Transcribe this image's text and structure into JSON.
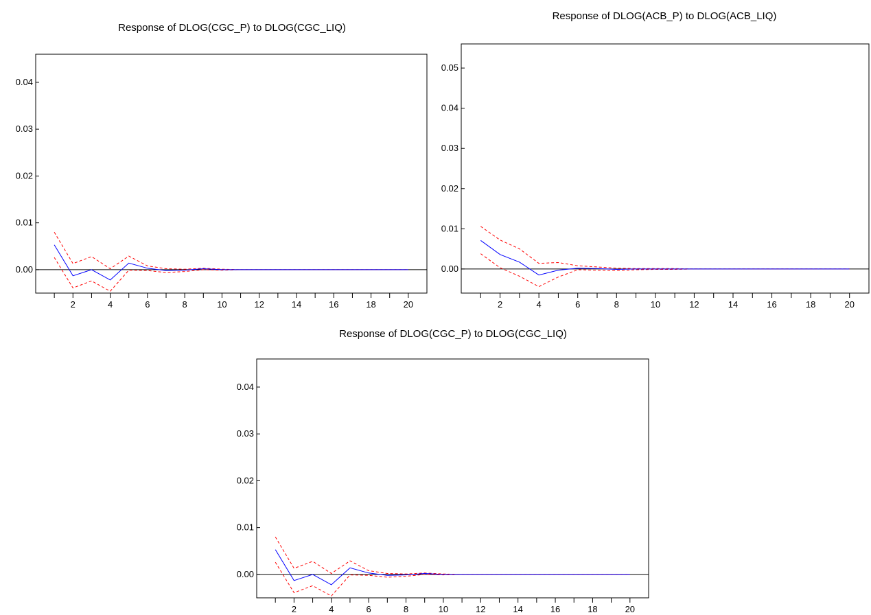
{
  "colors": {
    "response": "#0000ff",
    "bands": "#ff0000",
    "frame": "#000000",
    "zero_line": "#000000"
  },
  "chart_data": [
    {
      "type": "line",
      "title": "Response of DLOG(CGC_P) to DLOG(CGC_LIQ)",
      "xlabel": "",
      "ylabel": "",
      "xlim": [
        0,
        21
      ],
      "ylim": [
        -0.005,
        0.046
      ],
      "x_ticks": [
        2,
        4,
        6,
        8,
        10,
        12,
        14,
        16,
        18,
        20
      ],
      "x_tick_labels": [
        "2",
        "4",
        "6",
        "8",
        "10",
        "12",
        "14",
        "16",
        "18",
        "20"
      ],
      "y_ticks": [
        0,
        0.01,
        0.02,
        0.03,
        0.04
      ],
      "y_tick_labels": [
        "0.00",
        "0.01",
        "0.02",
        "0.03",
        "0.04"
      ],
      "grid": false,
      "x": [
        1,
        2,
        3,
        4,
        5,
        6,
        7,
        8,
        9,
        10,
        11,
        12,
        13,
        14,
        15,
        16,
        17,
        18,
        19,
        20
      ],
      "series": [
        {
          "style": "solid",
          "values": [
            0.0053,
            -0.0013,
            0.0,
            -0.0022,
            0.0014,
            0.0003,
            -0.0002,
            -0.0001,
            0.0002,
            0.0,
            0,
            0,
            0,
            0,
            0,
            0,
            0,
            0,
            0,
            0
          ]
        },
        {
          "style": "dashed",
          "values": [
            0.008,
            0.0013,
            0.0028,
            0.0002,
            0.0029,
            0.0008,
            0.0002,
            0.0001,
            0.0003,
            0.0001,
            0,
            0,
            0,
            0,
            0,
            0,
            0,
            0,
            0,
            0
          ]
        },
        {
          "style": "dashed",
          "values": [
            0.0026,
            -0.0039,
            -0.0024,
            -0.0046,
            -0.0001,
            -0.0002,
            -0.0006,
            -0.0004,
            0.0,
            -0.0001,
            0,
            0,
            0,
            0,
            0,
            0,
            0,
            0,
            0,
            0
          ]
        }
      ]
    },
    {
      "type": "line",
      "title": "Response of DLOG(ACB_P) to DLOG(ACB_LIQ)",
      "xlabel": "",
      "ylabel": "",
      "xlim": [
        0,
        21
      ],
      "ylim": [
        -0.006,
        0.056
      ],
      "x_ticks": [
        2,
        4,
        6,
        8,
        10,
        12,
        14,
        16,
        18,
        20
      ],
      "x_tick_labels": [
        "2",
        "4",
        "6",
        "8",
        "10",
        "12",
        "14",
        "16",
        "18",
        "20"
      ],
      "y_ticks": [
        0,
        0.01,
        0.02,
        0.03,
        0.04,
        0.05
      ],
      "y_tick_labels": [
        "0.00",
        "0.01",
        "0.02",
        "0.03",
        "0.04",
        "0.05"
      ],
      "grid": false,
      "x": [
        1,
        2,
        3,
        4,
        5,
        6,
        7,
        8,
        9,
        10,
        11,
        12,
        13,
        14,
        15,
        16,
        17,
        18,
        19,
        20
      ],
      "series": [
        {
          "style": "solid",
          "values": [
            0.0071,
            0.0036,
            0.0017,
            -0.0015,
            -0.0003,
            0.0002,
            0.0001,
            -0.0001,
            0,
            0,
            0,
            0,
            0,
            0,
            0,
            0,
            0,
            0,
            0,
            0
          ]
        },
        {
          "style": "dashed",
          "values": [
            0.0106,
            0.0072,
            0.005,
            0.0014,
            0.0016,
            0.0008,
            0.0005,
            0.0002,
            0.0001,
            0.0001,
            0.0001,
            0,
            0,
            0,
            0,
            0,
            0,
            0,
            0,
            0
          ]
        },
        {
          "style": "dashed",
          "values": [
            0.0038,
            0.0003,
            -0.0018,
            -0.0044,
            -0.002,
            -0.0002,
            -0.0003,
            -0.0004,
            -0.0002,
            -0.0001,
            -0.0001,
            0,
            0,
            0,
            0,
            0,
            0,
            0,
            0,
            0
          ]
        }
      ]
    },
    {
      "type": "line",
      "title": "Response of DLOG(CGC_P) to DLOG(CGC_LIQ)",
      "xlabel": "",
      "ylabel": "",
      "xlim": [
        0,
        21
      ],
      "ylim": [
        -0.005,
        0.046
      ],
      "x_ticks": [
        2,
        4,
        6,
        8,
        10,
        12,
        14,
        16,
        18,
        20
      ],
      "x_tick_labels": [
        "2",
        "4",
        "6",
        "8",
        "10",
        "12",
        "14",
        "16",
        "18",
        "20"
      ],
      "y_ticks": [
        0,
        0.01,
        0.02,
        0.03,
        0.04
      ],
      "y_tick_labels": [
        "0.00",
        "0.01",
        "0.02",
        "0.03",
        "0.04"
      ],
      "grid": false,
      "x": [
        1,
        2,
        3,
        4,
        5,
        6,
        7,
        8,
        9,
        10,
        11,
        12,
        13,
        14,
        15,
        16,
        17,
        18,
        19,
        20
      ],
      "series": [
        {
          "style": "solid",
          "values": [
            0.0053,
            -0.0013,
            0.0,
            -0.0022,
            0.0014,
            0.0003,
            -0.0002,
            -0.0001,
            0.0002,
            0.0,
            0,
            0,
            0,
            0,
            0,
            0,
            0,
            0,
            0,
            0
          ]
        },
        {
          "style": "dashed",
          "values": [
            0.008,
            0.0013,
            0.0028,
            0.0002,
            0.0029,
            0.0008,
            0.0002,
            0.0001,
            0.0003,
            0.0001,
            0,
            0,
            0,
            0,
            0,
            0,
            0,
            0,
            0,
            0
          ]
        },
        {
          "style": "dashed",
          "values": [
            0.0026,
            -0.0039,
            -0.0024,
            -0.0046,
            -0.0001,
            -0.0002,
            -0.0006,
            -0.0004,
            0.0,
            -0.0001,
            0,
            0,
            0,
            0,
            0,
            0,
            0,
            0,
            0,
            0
          ]
        }
      ]
    }
  ]
}
